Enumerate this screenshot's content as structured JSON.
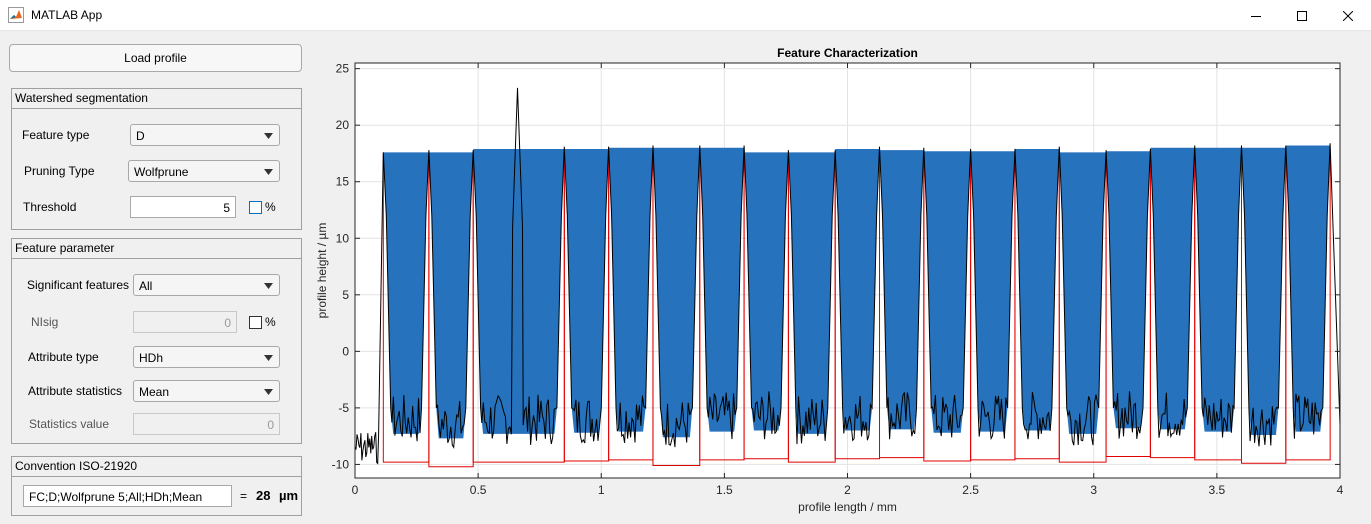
{
  "window": {
    "title": "MATLAB App",
    "icon": "matlab-logo-icon",
    "controls": [
      "minimize-icon",
      "maximize-icon",
      "close-icon"
    ]
  },
  "load_button": {
    "label": "Load profile"
  },
  "watershed": {
    "title": "Watershed segmentation",
    "feature_type": {
      "label": "Feature type",
      "value": "D"
    },
    "pruning_type": {
      "label": "Pruning Type",
      "value": "Wolfprune"
    },
    "threshold": {
      "label": "Threshold",
      "value": "5",
      "percent_label": "%",
      "percent_checked": false
    }
  },
  "feature_parameter": {
    "title": "Feature parameter",
    "significant_features": {
      "label": "Significant features",
      "value": "All"
    },
    "nlsig": {
      "label": "NIsig",
      "value": "0",
      "percent_label": "%",
      "percent_checked": false
    },
    "attribute_type": {
      "label": "Attribute type",
      "value": "HDh"
    },
    "attribute_statistics": {
      "label": "Attribute statistics",
      "value": "Mean"
    },
    "statistics_value": {
      "label": "Statistics value",
      "value": "0"
    }
  },
  "convention": {
    "title": "Convention ISO-21920",
    "code": "FC;D;Wolfprune 5;All;HDh;Mean",
    "equals": "=",
    "result": "28",
    "unit": "µm"
  },
  "chart_data": {
    "type": "area",
    "title": "Feature Characterization",
    "xlabel": "profile length / mm",
    "ylabel": "profile height / µm",
    "xlim": [
      0,
      4
    ],
    "ylim": [
      -11.2,
      25.5
    ],
    "xticks": [
      0,
      0.5,
      1,
      1.5,
      2,
      2.5,
      3,
      3.5,
      4
    ],
    "xtick_labels": [
      "0",
      "0.5",
      "1",
      "1.5",
      "2",
      "2.5",
      "3",
      "3.5",
      "4"
    ],
    "yticks": [
      -10,
      -5,
      0,
      5,
      10,
      15,
      20,
      25
    ],
    "ytick_labels": [
      "-10",
      "-5",
      "0",
      "5",
      "10",
      "15",
      "20",
      "25"
    ],
    "grid": true,
    "colors": {
      "fill": "#2672bd",
      "profile": "#000000",
      "pit_outline": "#e00000"
    },
    "features": [
      {
        "x_start": 0.115,
        "x_end": 0.3,
        "top": 17.6,
        "bottom": -9.8
      },
      {
        "x_start": 0.3,
        "x_end": 0.48,
        "top": 17.6,
        "bottom": -10.2
      },
      {
        "x_start": 0.48,
        "x_end": 0.85,
        "top": 17.9,
        "bottom": -9.8,
        "peak_x": 0.66,
        "peak_y": 23.3
      },
      {
        "x_start": 0.85,
        "x_end": 1.03,
        "top": 17.9,
        "bottom": -9.7
      },
      {
        "x_start": 1.03,
        "x_end": 1.21,
        "top": 18.0,
        "bottom": -9.6
      },
      {
        "x_start": 1.21,
        "x_end": 1.4,
        "top": 18.0,
        "bottom": -10.1
      },
      {
        "x_start": 1.4,
        "x_end": 1.58,
        "top": 18.0,
        "bottom": -9.6
      },
      {
        "x_start": 1.58,
        "x_end": 1.76,
        "top": 17.6,
        "bottom": -9.5
      },
      {
        "x_start": 1.76,
        "x_end": 1.95,
        "top": 17.6,
        "bottom": -9.8
      },
      {
        "x_start": 1.95,
        "x_end": 2.13,
        "top": 17.9,
        "bottom": -9.5
      },
      {
        "x_start": 2.13,
        "x_end": 2.31,
        "top": 17.8,
        "bottom": -9.4
      },
      {
        "x_start": 2.31,
        "x_end": 2.5,
        "top": 17.7,
        "bottom": -9.7
      },
      {
        "x_start": 2.5,
        "x_end": 2.68,
        "top": 17.7,
        "bottom": -9.6
      },
      {
        "x_start": 2.68,
        "x_end": 2.86,
        "top": 17.9,
        "bottom": -9.5
      },
      {
        "x_start": 2.86,
        "x_end": 3.05,
        "top": 17.6,
        "bottom": -9.8
      },
      {
        "x_start": 3.05,
        "x_end": 3.23,
        "top": 17.7,
        "bottom": -9.3
      },
      {
        "x_start": 3.23,
        "x_end": 3.41,
        "top": 18.0,
        "bottom": -9.4
      },
      {
        "x_start": 3.41,
        "x_end": 3.6,
        "top": 18.0,
        "bottom": -9.6
      },
      {
        "x_start": 3.6,
        "x_end": 3.78,
        "top": 18.0,
        "bottom": -9.9
      },
      {
        "x_start": 3.78,
        "x_end": 3.96,
        "top": 18.2,
        "bottom": -9.6
      }
    ]
  }
}
